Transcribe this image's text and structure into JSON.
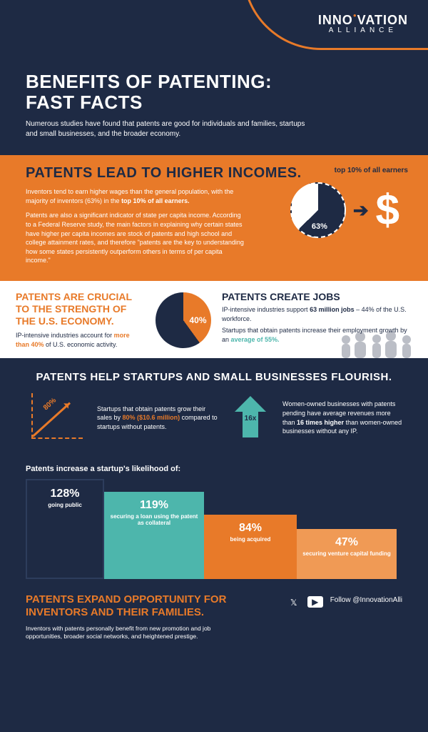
{
  "logo": {
    "main": "INNOVATION",
    "sub": "ALLIANCE"
  },
  "title": "BENEFITS OF PATENTING: FAST FACTS",
  "subtitle": "Numerous studies have found that patents are good for individuals and families, startups and small businesses, and the broader economy.",
  "s1": {
    "heading": "PATENTS LEAD TO HIGHER INCOMES.",
    "p1a": "Inventors tend to earn higher wages than the general population, with the majority of inventors (63%) in the ",
    "p1b": "top 10% of all earners.",
    "p2": "Patents are also a significant indicator of state per capita income. According to a Federal Reserve study, the main factors in explaining why certain states have higher per capita incomes are stock of patents and high school and college attainment rates, and therefore \"patents are the key to understanding how some states persistently outperform others in terms of per capita income.\"",
    "pie_pct": 63,
    "pie_label": "63%",
    "top10_label": "top 10% of all earners",
    "colors": {
      "slice_main": "#1e2a44",
      "slice_rest": "#ffffff",
      "bg": "#e87a29"
    }
  },
  "s2": {
    "left_heading": "PATENTS ARE CRUCIAL TO THE STRENGTH OF THE U.S. ECONOMY.",
    "left_text_a": "IP-intensive industries account for ",
    "left_text_b": "more than 40%",
    "left_text_c": " of U.S. economic activity.",
    "pie_pct": 40,
    "pie_label": "40%",
    "pie_colors": {
      "slice_a": "#e87a29",
      "slice_b": "#1e2a44"
    },
    "right_heading": "PATENTS CREATE JOBS",
    "r1a": "IP-intensive industries support ",
    "r1b": "63 million jobs",
    "r1c": " – 44% of the U.S. workforce.",
    "r2a": "Startups that obtain patents increase their employment growth by an ",
    "r2b": "average of 55%."
  },
  "s3": {
    "heading": "PATENTS HELP STARTUPS AND SMALL BUSINESSES FLOURISH.",
    "growth_label": "80%",
    "t1a": "Startups that obtain patents grow their sales by ",
    "t1b": "80% ($10.6 million)",
    "t1c": " compared to startups without patents.",
    "arrow_label": "16x",
    "t2a": "Women-owned businesses with patents pending have average revenues more than ",
    "t2b": "16 times higher",
    "t2c": " than women-owned businesses without any IP.",
    "bars_title": "Patents increase a startup's likelihood of:",
    "bars": [
      {
        "value": "128%",
        "label": "going public",
        "height": 140,
        "width": 110,
        "color": "#1e2a44",
        "border": "2px solid #2d3d5c"
      },
      {
        "value": "119%",
        "label": "securing a loan using the patent as collateral",
        "height": 122,
        "width": 140,
        "color": "#4db6ac"
      },
      {
        "value": "84%",
        "label": "being acquired",
        "height": 90,
        "width": 130,
        "color": "#e87a29"
      },
      {
        "value": "47%",
        "label": "securing venture capital funding",
        "height": 70,
        "width": 140,
        "color": "#f09a55"
      }
    ]
  },
  "footer": {
    "heading": "PATENTS EXPAND OPPORTUNITY FOR INVENTORS AND THEIR FAMILIES.",
    "text": "Inventors with patents personally benefit from new promotion and job opportunities, broader social networks, and heightened prestige.",
    "follow": "Follow @InnovationAlli"
  },
  "style": {
    "bg_dark": "#1e2a44",
    "orange": "#e87a29",
    "teal": "#4db6ac",
    "white": "#ffffff",
    "title_fontsize": 26,
    "h2_fontsize": 20,
    "body_fontsize": 9
  }
}
